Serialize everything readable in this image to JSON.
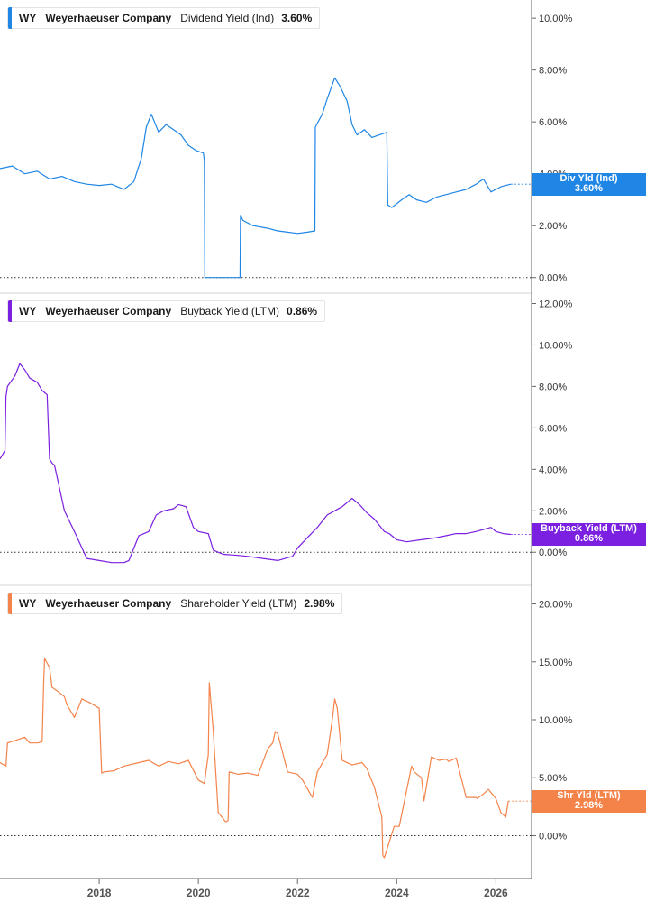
{
  "colors": {
    "panel1": "#1f86e6",
    "panel2": "#7b1fe0",
    "panel3": "#f4834a",
    "axis": "#666666",
    "grid": "#d4d4d4"
  },
  "chart_data": [
    {
      "type": "line",
      "legend": {
        "ticker": "WY",
        "company": "Weyerhaeuser Company",
        "metric": "Dividend Yield (Ind)",
        "value": "3.60%"
      },
      "badge": {
        "label": "Div Yld (Ind)",
        "value": "3.60%"
      },
      "ylim": [
        -0.6,
        10.7
      ],
      "yticks": [
        "0.00%",
        "2.00%",
        "4.00%",
        "6.00%",
        "8.00%",
        "10.00%"
      ],
      "ytick_values": [
        0,
        2,
        4,
        6,
        8,
        10
      ],
      "xlim": [
        2016.0,
        2026.72
      ],
      "series": [
        {
          "x": [
            2016.0,
            2016.25,
            2016.5,
            2016.75,
            2017.0,
            2017.25,
            2017.5,
            2017.75,
            2018.0,
            2018.25,
            2018.5,
            2018.7,
            2018.85,
            2018.95,
            2019.05,
            2019.2,
            2019.35,
            2019.5,
            2019.65,
            2019.8,
            2019.95,
            2020.1,
            2020.12,
            2020.13,
            2020.5,
            2020.84,
            2020.85,
            2020.9,
            2021.1,
            2021.4,
            2021.6,
            2021.8,
            2022.0,
            2022.2,
            2022.35,
            2022.36,
            2022.5,
            2022.6,
            2022.75,
            2022.85,
            2023.0,
            2023.1,
            2023.2,
            2023.35,
            2023.5,
            2023.65,
            2023.8,
            2023.82,
            2023.9,
            2024.1,
            2024.25,
            2024.4,
            2024.6,
            2024.8,
            2025.0,
            2025.2,
            2025.4,
            2025.6,
            2025.75,
            2025.9,
            2026.0,
            2026.1,
            2026.2,
            2026.3
          ],
          "values": [
            4.2,
            4.3,
            4.0,
            4.1,
            3.8,
            3.9,
            3.7,
            3.6,
            3.55,
            3.6,
            3.4,
            3.7,
            4.6,
            5.8,
            6.3,
            5.6,
            5.9,
            5.7,
            5.5,
            5.1,
            4.9,
            4.8,
            4.5,
            0.0,
            0.0,
            0.0,
            2.4,
            2.2,
            2.0,
            1.9,
            1.8,
            1.75,
            1.7,
            1.75,
            1.8,
            5.8,
            6.3,
            6.9,
            7.7,
            7.4,
            6.8,
            5.9,
            5.5,
            5.7,
            5.4,
            5.5,
            5.6,
            2.8,
            2.7,
            3.0,
            3.2,
            3.0,
            2.9,
            3.1,
            3.2,
            3.3,
            3.4,
            3.6,
            3.8,
            3.3,
            3.4,
            3.5,
            3.55,
            3.6
          ]
        }
      ]
    },
    {
      "type": "line",
      "legend": {
        "ticker": "WY",
        "company": "Weyerhaeuser Company",
        "metric": "Buyback Yield (LTM)",
        "value": "0.86%"
      },
      "badge": {
        "label": "Buyback Yield (LTM)",
        "value": "0.86%"
      },
      "ylim": [
        -1.6,
        12.5
      ],
      "yticks": [
        "0.00%",
        "2.00%",
        "4.00%",
        "6.00%",
        "8.00%",
        "10.00%",
        "12.00%"
      ],
      "ytick_values": [
        0,
        2,
        4,
        6,
        8,
        10,
        12
      ],
      "xlim": [
        2016.0,
        2026.72
      ],
      "series": [
        {
          "x": [
            2016.0,
            2016.1,
            2016.12,
            2016.15,
            2016.3,
            2016.4,
            2016.5,
            2016.6,
            2016.75,
            2016.85,
            2016.95,
            2017.0,
            2017.05,
            2017.1,
            2017.3,
            2017.5,
            2017.75,
            2018.0,
            2018.25,
            2018.5,
            2018.6,
            2018.8,
            2019.0,
            2019.15,
            2019.3,
            2019.5,
            2019.6,
            2019.75,
            2019.9,
            2020.0,
            2020.2,
            2020.3,
            2020.5,
            2020.8,
            2021.0,
            2021.3,
            2021.6,
            2021.75,
            2021.9,
            2022.0,
            2022.2,
            2022.4,
            2022.6,
            2022.75,
            2022.9,
            2023.0,
            2023.1,
            2023.25,
            2023.4,
            2023.55,
            2023.75,
            2023.85,
            2024.0,
            2024.2,
            2024.5,
            2024.8,
            2025.0,
            2025.2,
            2025.4,
            2025.6,
            2025.75,
            2025.9,
            2026.0,
            2026.15,
            2026.3
          ],
          "values": [
            4.5,
            4.9,
            7.5,
            8.0,
            8.5,
            9.1,
            8.8,
            8.4,
            8.2,
            7.8,
            7.6,
            4.5,
            4.3,
            4.2,
            2.0,
            1.0,
            -0.3,
            -0.4,
            -0.5,
            -0.5,
            -0.4,
            0.8,
            1.0,
            1.8,
            2.0,
            2.1,
            2.3,
            2.2,
            1.2,
            1.0,
            0.9,
            0.1,
            -0.1,
            -0.15,
            -0.2,
            -0.3,
            -0.4,
            -0.3,
            -0.2,
            0.2,
            0.7,
            1.2,
            1.8,
            2.0,
            2.2,
            2.4,
            2.6,
            2.3,
            1.9,
            1.6,
            1.0,
            0.9,
            0.6,
            0.5,
            0.6,
            0.7,
            0.8,
            0.9,
            0.9,
            1.0,
            1.1,
            1.2,
            1.0,
            0.9,
            0.86
          ]
        }
      ]
    },
    {
      "type": "line",
      "legend": {
        "ticker": "WY",
        "company": "Weyerhaeuser Company",
        "metric": "Shareholder Yield (LTM)",
        "value": "2.98%"
      },
      "badge": {
        "label": "Shr Yld (LTM)",
        "value": "2.98%"
      },
      "ylim": [
        -3.7,
        21.6
      ],
      "yticks": [
        "0.00%",
        "5.00%",
        "10.00%",
        "15.00%",
        "20.00%"
      ],
      "ytick_values": [
        0,
        5,
        10,
        15,
        20
      ],
      "xlim": [
        2016.0,
        2026.72
      ],
      "series": [
        {
          "x": [
            2016.0,
            2016.12,
            2016.15,
            2016.3,
            2016.5,
            2016.6,
            2016.75,
            2016.85,
            2016.88,
            2016.9,
            2017.0,
            2017.05,
            2017.15,
            2017.3,
            2017.35,
            2017.5,
            2017.65,
            2017.8,
            2018.0,
            2018.05,
            2018.1,
            2018.3,
            2018.5,
            2018.8,
            2019.0,
            2019.2,
            2019.4,
            2019.6,
            2019.8,
            2020.0,
            2020.12,
            2020.2,
            2020.22,
            2020.3,
            2020.4,
            2020.55,
            2020.6,
            2020.62,
            2020.8,
            2021.0,
            2021.2,
            2021.4,
            2021.5,
            2021.55,
            2021.6,
            2021.8,
            2022.0,
            2022.1,
            2022.3,
            2022.4,
            2022.6,
            2022.7,
            2022.75,
            2022.8,
            2022.9,
            2023.1,
            2023.3,
            2023.4,
            2023.5,
            2023.52,
            2023.55,
            2023.7,
            2023.72,
            2023.75,
            2023.95,
            2024.0,
            2024.05,
            2024.3,
            2024.35,
            2024.5,
            2024.55,
            2024.7,
            2024.85,
            2025.0,
            2025.05,
            2025.2,
            2025.4,
            2025.6,
            2025.62,
            2025.75,
            2025.85,
            2026.0,
            2026.1,
            2026.2,
            2026.25
          ],
          "values": [
            6.3,
            6.0,
            8.0,
            8.2,
            8.5,
            8.0,
            8.0,
            8.1,
            13.0,
            15.3,
            14.5,
            12.8,
            12.5,
            12.0,
            11.3,
            10.2,
            11.8,
            11.5,
            11.0,
            5.4,
            5.5,
            5.6,
            6.0,
            6.3,
            6.5,
            6.0,
            6.4,
            6.2,
            6.5,
            4.8,
            4.5,
            7.0,
            13.2,
            9.0,
            2.0,
            1.2,
            1.3,
            5.5,
            5.3,
            5.4,
            5.2,
            7.5,
            8.0,
            9.0,
            8.8,
            5.5,
            5.3,
            4.8,
            3.3,
            5.5,
            7.0,
            10.0,
            11.8,
            11.0,
            6.5,
            6.1,
            6.3,
            5.8,
            4.7,
            4.5,
            4.2,
            1.6,
            -1.7,
            -1.9,
            0.8,
            0.8,
            0.8,
            6.0,
            5.5,
            5.0,
            3.0,
            6.8,
            6.5,
            6.6,
            6.4,
            6.7,
            3.3,
            3.3,
            3.2,
            3.6,
            4.0,
            3.2,
            2.0,
            1.6,
            2.98
          ]
        }
      ]
    }
  ],
  "xaxis": {
    "ticks": [
      "2018",
      "2020",
      "2022",
      "2024",
      "2026"
    ],
    "tick_values": [
      2018,
      2020,
      2022,
      2024,
      2026
    ]
  }
}
